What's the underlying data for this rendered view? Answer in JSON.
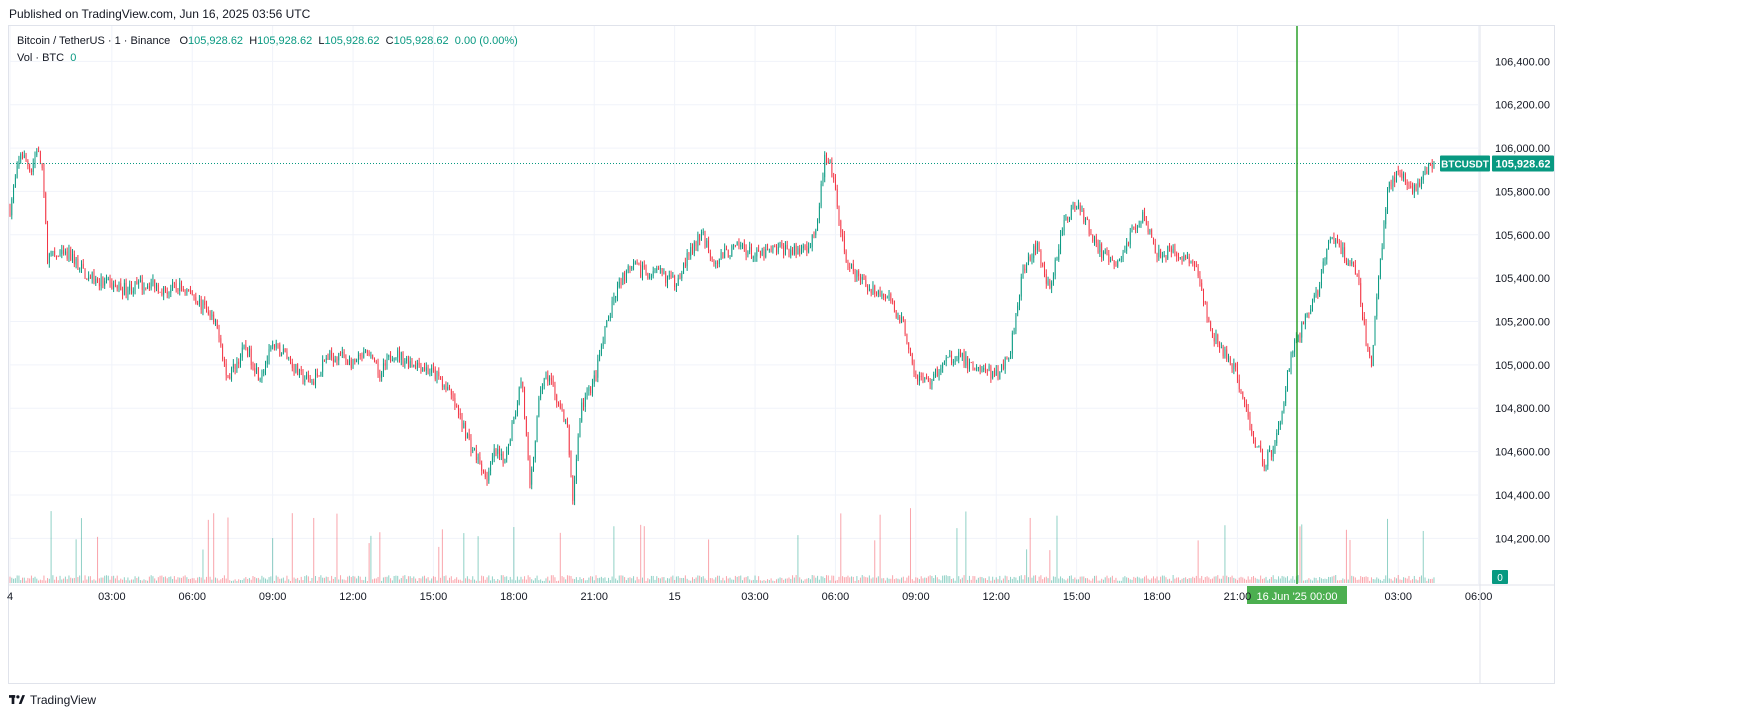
{
  "header": {
    "published": "Published on TradingView.com, Jun 16, 2025 03:56 UTC"
  },
  "legend": {
    "symbol": "Bitcoin / TetherUS · 1 · Binance",
    "o_label": "O",
    "o_value": "105,928.62",
    "h_label": "H",
    "h_value": "105,928.62",
    "l_label": "L",
    "l_value": "105,928.62",
    "c_label": "C",
    "c_value": "105,928.62",
    "change": "0.00 (0.00%)",
    "vol_label": "Vol · BTC",
    "vol_value": "0"
  },
  "footer": {
    "brand": "TradingView"
  },
  "colors": {
    "up": "#089981",
    "down": "#f23645",
    "grid": "#f0f3fa",
    "price_tag": "#089981",
    "session_line": "#2ca02c",
    "date_highlight": "#4caf50"
  },
  "chart_data": {
    "type": "candlestick",
    "symbol": "BTCUSDT",
    "last_price": 105928.62,
    "last_price_label": "105,928.62",
    "symbol_tag": "BTCUSDT",
    "volume_last": "0",
    "ylim": [
      104100,
      106480
    ],
    "y_ticks": [
      106400,
      106200,
      106000,
      105800,
      105600,
      105400,
      105200,
      105000,
      104800,
      104600,
      104400,
      104200
    ],
    "y_tick_labels": [
      "106,400.00",
      "106,200.00",
      "106,000.00",
      "105,800.00",
      "105,600.00",
      "105,400.00",
      "105,200.00",
      "105,000.00",
      "104,800.00",
      "104,600.00",
      "104,400.00",
      "104,200.00"
    ],
    "x_range_hours": [
      -0.8,
      30.2
    ],
    "x_ticks": [
      {
        "label": "4",
        "hour": -0.8
      },
      {
        "label": "03:00",
        "hour": 3
      },
      {
        "label": "06:00",
        "hour": 6
      },
      {
        "label": "09:00",
        "hour": 9
      },
      {
        "label": "12:00",
        "hour": 12
      },
      {
        "label": "15:00",
        "hour": 15
      },
      {
        "label": "18:00",
        "hour": 18
      },
      {
        "label": "21:00",
        "hour": 21
      },
      {
        "label": "15",
        "hour": 24
      },
      {
        "label": "03:00",
        "hour": 27
      },
      {
        "label": "06:00",
        "hour": 30
      },
      {
        "label": "09:00",
        "hour": 33
      },
      {
        "label": "12:00",
        "hour": 36
      },
      {
        "label": "15:00",
        "hour": 39
      },
      {
        "label": "18:00",
        "hour": 42
      },
      {
        "label": "21:00",
        "hour": 45
      },
      {
        "label": "03:00",
        "hour": 51
      },
      {
        "label": "06:00",
        "hour": 54
      }
    ],
    "highlight_date_label": "16 Jun '25   00:00",
    "highlight_hour": 48,
    "price_path": [
      [
        -0.8,
        105720
      ],
      [
        -0.4,
        105980
      ],
      [
        0.0,
        105900
      ],
      [
        0.2,
        106000
      ],
      [
        0.4,
        105900
      ],
      [
        0.6,
        105500
      ],
      [
        1.5,
        105500
      ],
      [
        2.0,
        105420
      ],
      [
        2.5,
        105380
      ],
      [
        3.5,
        105350
      ],
      [
        4.5,
        105380
      ],
      [
        5.0,
        105340
      ],
      [
        5.5,
        105360
      ],
      [
        6.0,
        105330
      ],
      [
        6.5,
        105250
      ],
      [
        7.0,
        105150
      ],
      [
        7.3,
        104930
      ],
      [
        7.6,
        105000
      ],
      [
        8.0,
        105080
      ],
      [
        8.5,
        104950
      ],
      [
        9.0,
        105080
      ],
      [
        9.5,
        105050
      ],
      [
        10.0,
        104950
      ],
      [
        10.5,
        104920
      ],
      [
        11.0,
        105030
      ],
      [
        11.5,
        105050
      ],
      [
        12.0,
        105000
      ],
      [
        12.5,
        105050
      ],
      [
        13.0,
        104950
      ],
      [
        13.5,
        105060
      ],
      [
        14.0,
        105020
      ],
      [
        14.5,
        105000
      ],
      [
        15.0,
        104960
      ],
      [
        15.5,
        104900
      ],
      [
        16.0,
        104750
      ],
      [
        16.5,
        104600
      ],
      [
        17.0,
        104480
      ],
      [
        17.3,
        104600
      ],
      [
        17.6,
        104550
      ],
      [
        18.0,
        104750
      ],
      [
        18.3,
        104950
      ],
      [
        18.6,
        104420
      ],
      [
        19.0,
        104900
      ],
      [
        19.3,
        104950
      ],
      [
        19.6,
        104850
      ],
      [
        20.0,
        104700
      ],
      [
        20.2,
        104380
      ],
      [
        20.5,
        104800
      ],
      [
        21.0,
        104930
      ],
      [
        21.5,
        105200
      ],
      [
        22.0,
        105400
      ],
      [
        22.5,
        105450
      ],
      [
        23.0,
        105420
      ],
      [
        23.5,
        105420
      ],
      [
        24.0,
        105380
      ],
      [
        24.5,
        105500
      ],
      [
        25.0,
        105600
      ],
      [
        25.5,
        105480
      ],
      [
        26.0,
        105520
      ],
      [
        26.5,
        105550
      ],
      [
        27.0,
        105500
      ],
      [
        27.5,
        105520
      ],
      [
        28.0,
        105540
      ],
      [
        28.5,
        105520
      ],
      [
        29.0,
        105550
      ],
      [
        29.3,
        105650
      ],
      [
        29.6,
        105950
      ],
      [
        29.9,
        105880
      ],
      [
        30.2,
        105600
      ],
      [
        30.5,
        105450
      ],
      [
        31.0,
        105380
      ],
      [
        31.5,
        105350
      ],
      [
        32.0,
        105300
      ],
      [
        32.5,
        105200
      ],
      [
        33.0,
        104950
      ],
      [
        33.5,
        104920
      ],
      [
        34.0,
        105000
      ],
      [
        34.5,
        105050
      ],
      [
        35.0,
        105000
      ],
      [
        35.5,
        104980
      ],
      [
        36.0,
        104950
      ],
      [
        36.5,
        105050
      ],
      [
        37.0,
        105450
      ],
      [
        37.5,
        105550
      ],
      [
        38.0,
        105350
      ],
      [
        38.5,
        105650
      ],
      [
        39.0,
        105750
      ],
      [
        39.5,
        105620
      ],
      [
        40.0,
        105500
      ],
      [
        40.5,
        105450
      ],
      [
        41.0,
        105600
      ],
      [
        41.5,
        105700
      ],
      [
        42.0,
        105520
      ],
      [
        42.5,
        105520
      ],
      [
        43.0,
        105500
      ],
      [
        43.5,
        105430
      ],
      [
        44.0,
        105150
      ],
      [
        44.5,
        105050
      ],
      [
        45.0,
        104950
      ],
      [
        45.5,
        104700
      ],
      [
        46.0,
        104550
      ],
      [
        46.3,
        104600
      ],
      [
        46.6,
        104750
      ],
      [
        47.0,
        105050
      ],
      [
        47.5,
        105200
      ],
      [
        48.0,
        105350
      ],
      [
        48.5,
        105600
      ],
      [
        49.0,
        105500
      ],
      [
        49.5,
        105400
      ],
      [
        49.8,
        105100
      ],
      [
        50.0,
        105000
      ],
      [
        50.3,
        105450
      ],
      [
        50.6,
        105800
      ],
      [
        51.0,
        105900
      ],
      [
        51.5,
        105780
      ],
      [
        52.0,
        105900
      ],
      [
        52.4,
        105928
      ]
    ]
  }
}
